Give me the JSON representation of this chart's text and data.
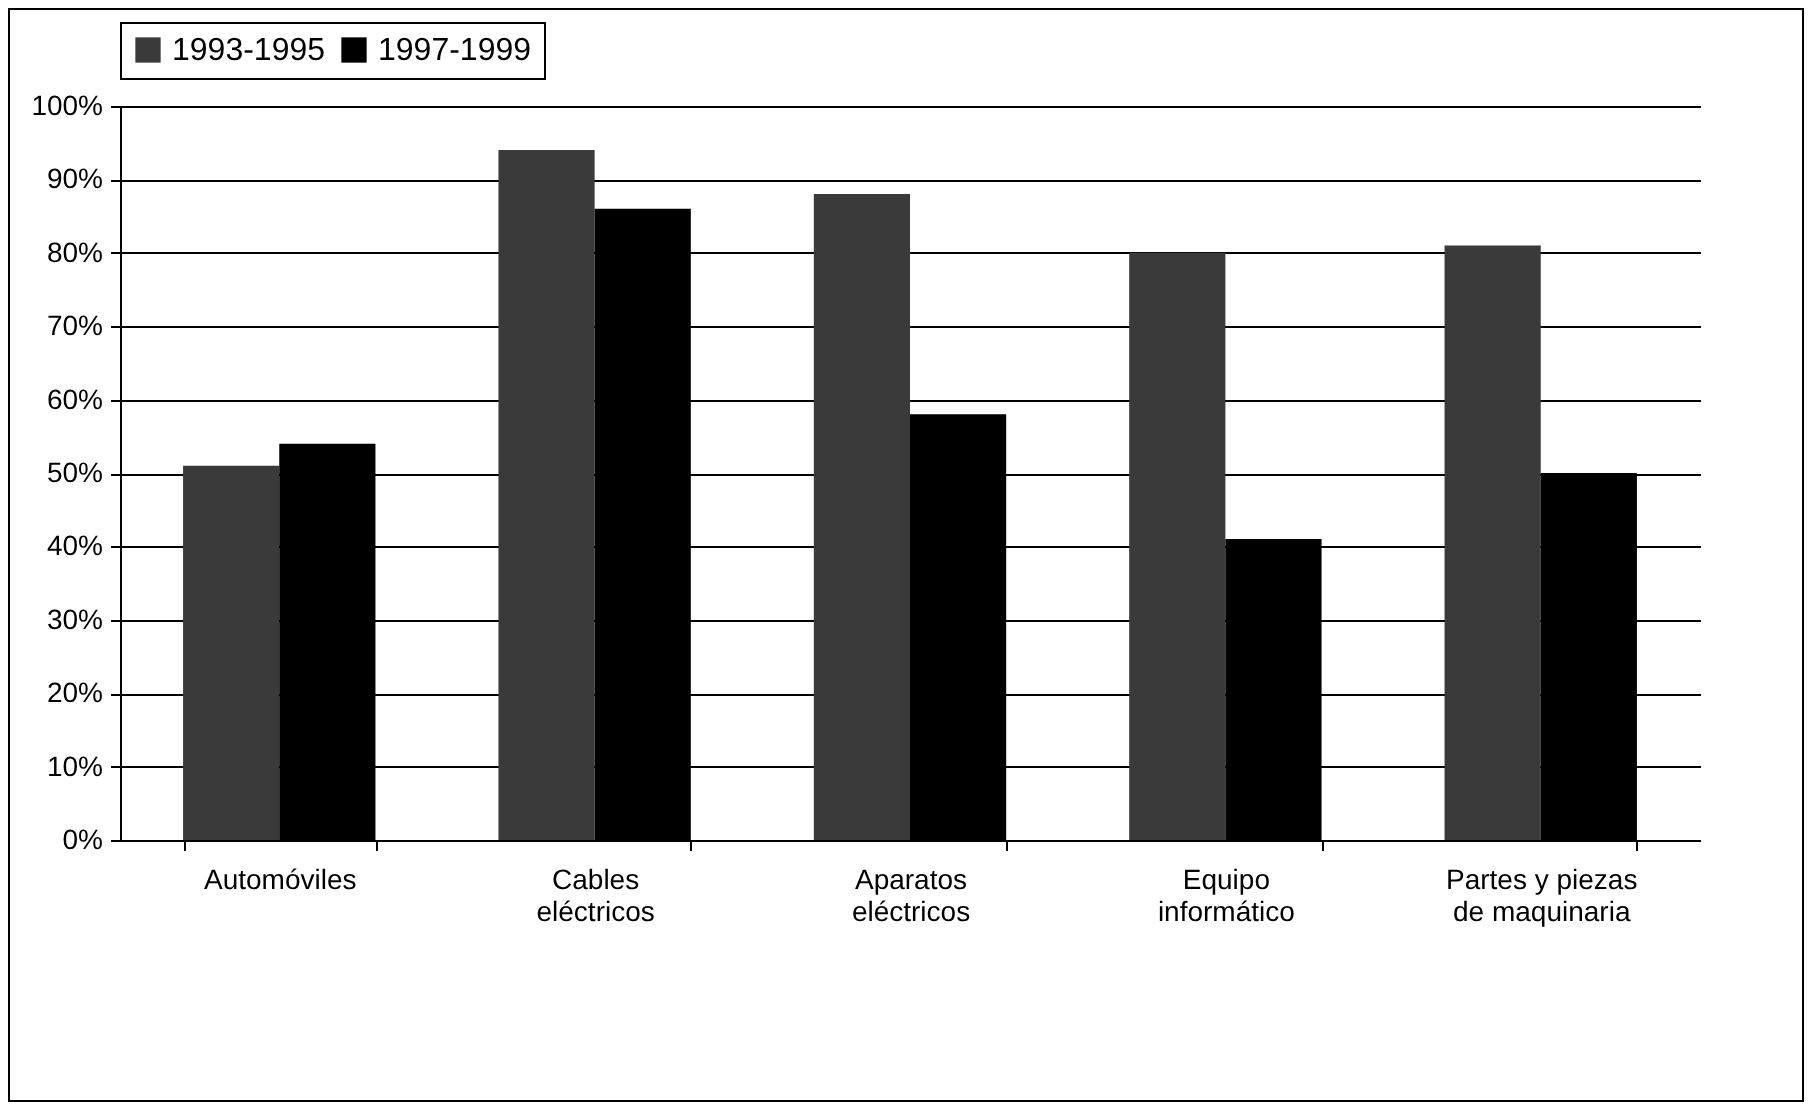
{
  "chart_data": {
    "type": "bar",
    "categories": [
      "Automóviles",
      "Cables eléctricos",
      "Aparatos eléctricos",
      "Equipo informático",
      "Partes y piezas de maquinaria"
    ],
    "series": [
      {
        "name": "1993-1995",
        "color": "#3a3a3a",
        "values": [
          51,
          94,
          88,
          80,
          81
        ]
      },
      {
        "name": "1997-1999",
        "color": "#000000",
        "values": [
          54,
          86,
          58,
          41,
          50
        ]
      }
    ],
    "ylim": [
      0,
      100
    ],
    "yticks": [
      {
        "value": 0,
        "label": "0%"
      },
      {
        "value": 10,
        "label": "10%"
      },
      {
        "value": 20,
        "label": "20%"
      },
      {
        "value": 30,
        "label": "30%"
      },
      {
        "value": 40,
        "label": "40%"
      },
      {
        "value": 50,
        "label": "50%"
      },
      {
        "value": 60,
        "label": "60%"
      },
      {
        "value": 70,
        "label": "70%"
      },
      {
        "value": 80,
        "label": "80%"
      },
      {
        "value": 90,
        "label": "90%"
      },
      {
        "value": 100,
        "label": "100%"
      }
    ],
    "grid": "y",
    "legend": "top"
  }
}
